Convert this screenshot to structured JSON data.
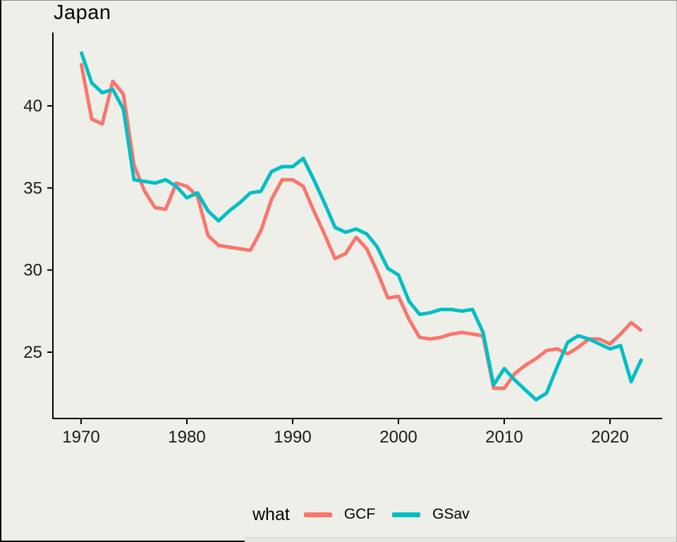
{
  "window": {
    "background": "#efefe9"
  },
  "chart_data": {
    "type": "line",
    "title": "Japan",
    "xlabel": "",
    "ylabel": "",
    "grid": false,
    "axis_color": "#000000",
    "tick_label_color": "#1a1a1a",
    "x_ticks": [
      1970,
      1980,
      1990,
      2000,
      2010,
      2020
    ],
    "y_ticks": [
      25,
      30,
      35,
      40
    ],
    "xlim": [
      1967.3,
      2024.9
    ],
    "ylim": [
      21.0,
      44.5
    ],
    "legend": {
      "title": "what",
      "position": "bottom",
      "entries": [
        {
          "label": "GCF",
          "color": "#F8766D"
        },
        {
          "label": "GSav",
          "color": "#00BFC4"
        }
      ]
    },
    "x": [
      1970,
      1971,
      1972,
      1973,
      1974,
      1975,
      1976,
      1977,
      1978,
      1979,
      1980,
      1981,
      1982,
      1983,
      1984,
      1985,
      1986,
      1987,
      1988,
      1989,
      1990,
      1991,
      1992,
      1993,
      1994,
      1995,
      1996,
      1997,
      1998,
      1999,
      2000,
      2001,
      2002,
      2003,
      2004,
      2005,
      2006,
      2007,
      2008,
      2009,
      2010,
      2011,
      2012,
      2013,
      2014,
      2015,
      2016,
      2017,
      2018,
      2019,
      2020,
      2021,
      2022,
      2023
    ],
    "series": [
      {
        "name": "GCF",
        "color": "#F8766D",
        "values": [
          42.6,
          39.2,
          38.9,
          41.5,
          40.7,
          36.4,
          34.8,
          33.8,
          33.7,
          35.3,
          35.1,
          34.5,
          32.1,
          31.5,
          31.4,
          31.3,
          31.2,
          32.4,
          34.3,
          35.5,
          35.5,
          35.1,
          33.6,
          32.2,
          30.7,
          31.0,
          32.0,
          31.3,
          29.9,
          28.3,
          28.4,
          27.0,
          25.9,
          25.8,
          25.9,
          26.1,
          26.2,
          26.1,
          26.0,
          22.8,
          22.8,
          23.7,
          24.2,
          24.6,
          25.1,
          25.2,
          24.9,
          25.3,
          25.8,
          25.8,
          25.5,
          26.1,
          26.8,
          26.3
        ]
      },
      {
        "name": "GSav",
        "color": "#00BFC4",
        "values": [
          43.3,
          41.4,
          40.8,
          41.0,
          39.8,
          35.5,
          35.4,
          35.3,
          35.5,
          35.1,
          34.4,
          34.7,
          33.6,
          33.0,
          33.6,
          34.1,
          34.7,
          34.8,
          36.0,
          36.3,
          36.3,
          36.8,
          35.5,
          34.1,
          32.6,
          32.3,
          32.5,
          32.2,
          31.4,
          30.1,
          29.7,
          28.1,
          27.3,
          27.4,
          27.6,
          27.6,
          27.5,
          27.6,
          26.2,
          23.0,
          24.0,
          23.3,
          22.7,
          22.1,
          22.5,
          24.1,
          25.6,
          26.0,
          25.8,
          25.5,
          25.2,
          25.4,
          23.2,
          24.6
        ]
      }
    ]
  }
}
